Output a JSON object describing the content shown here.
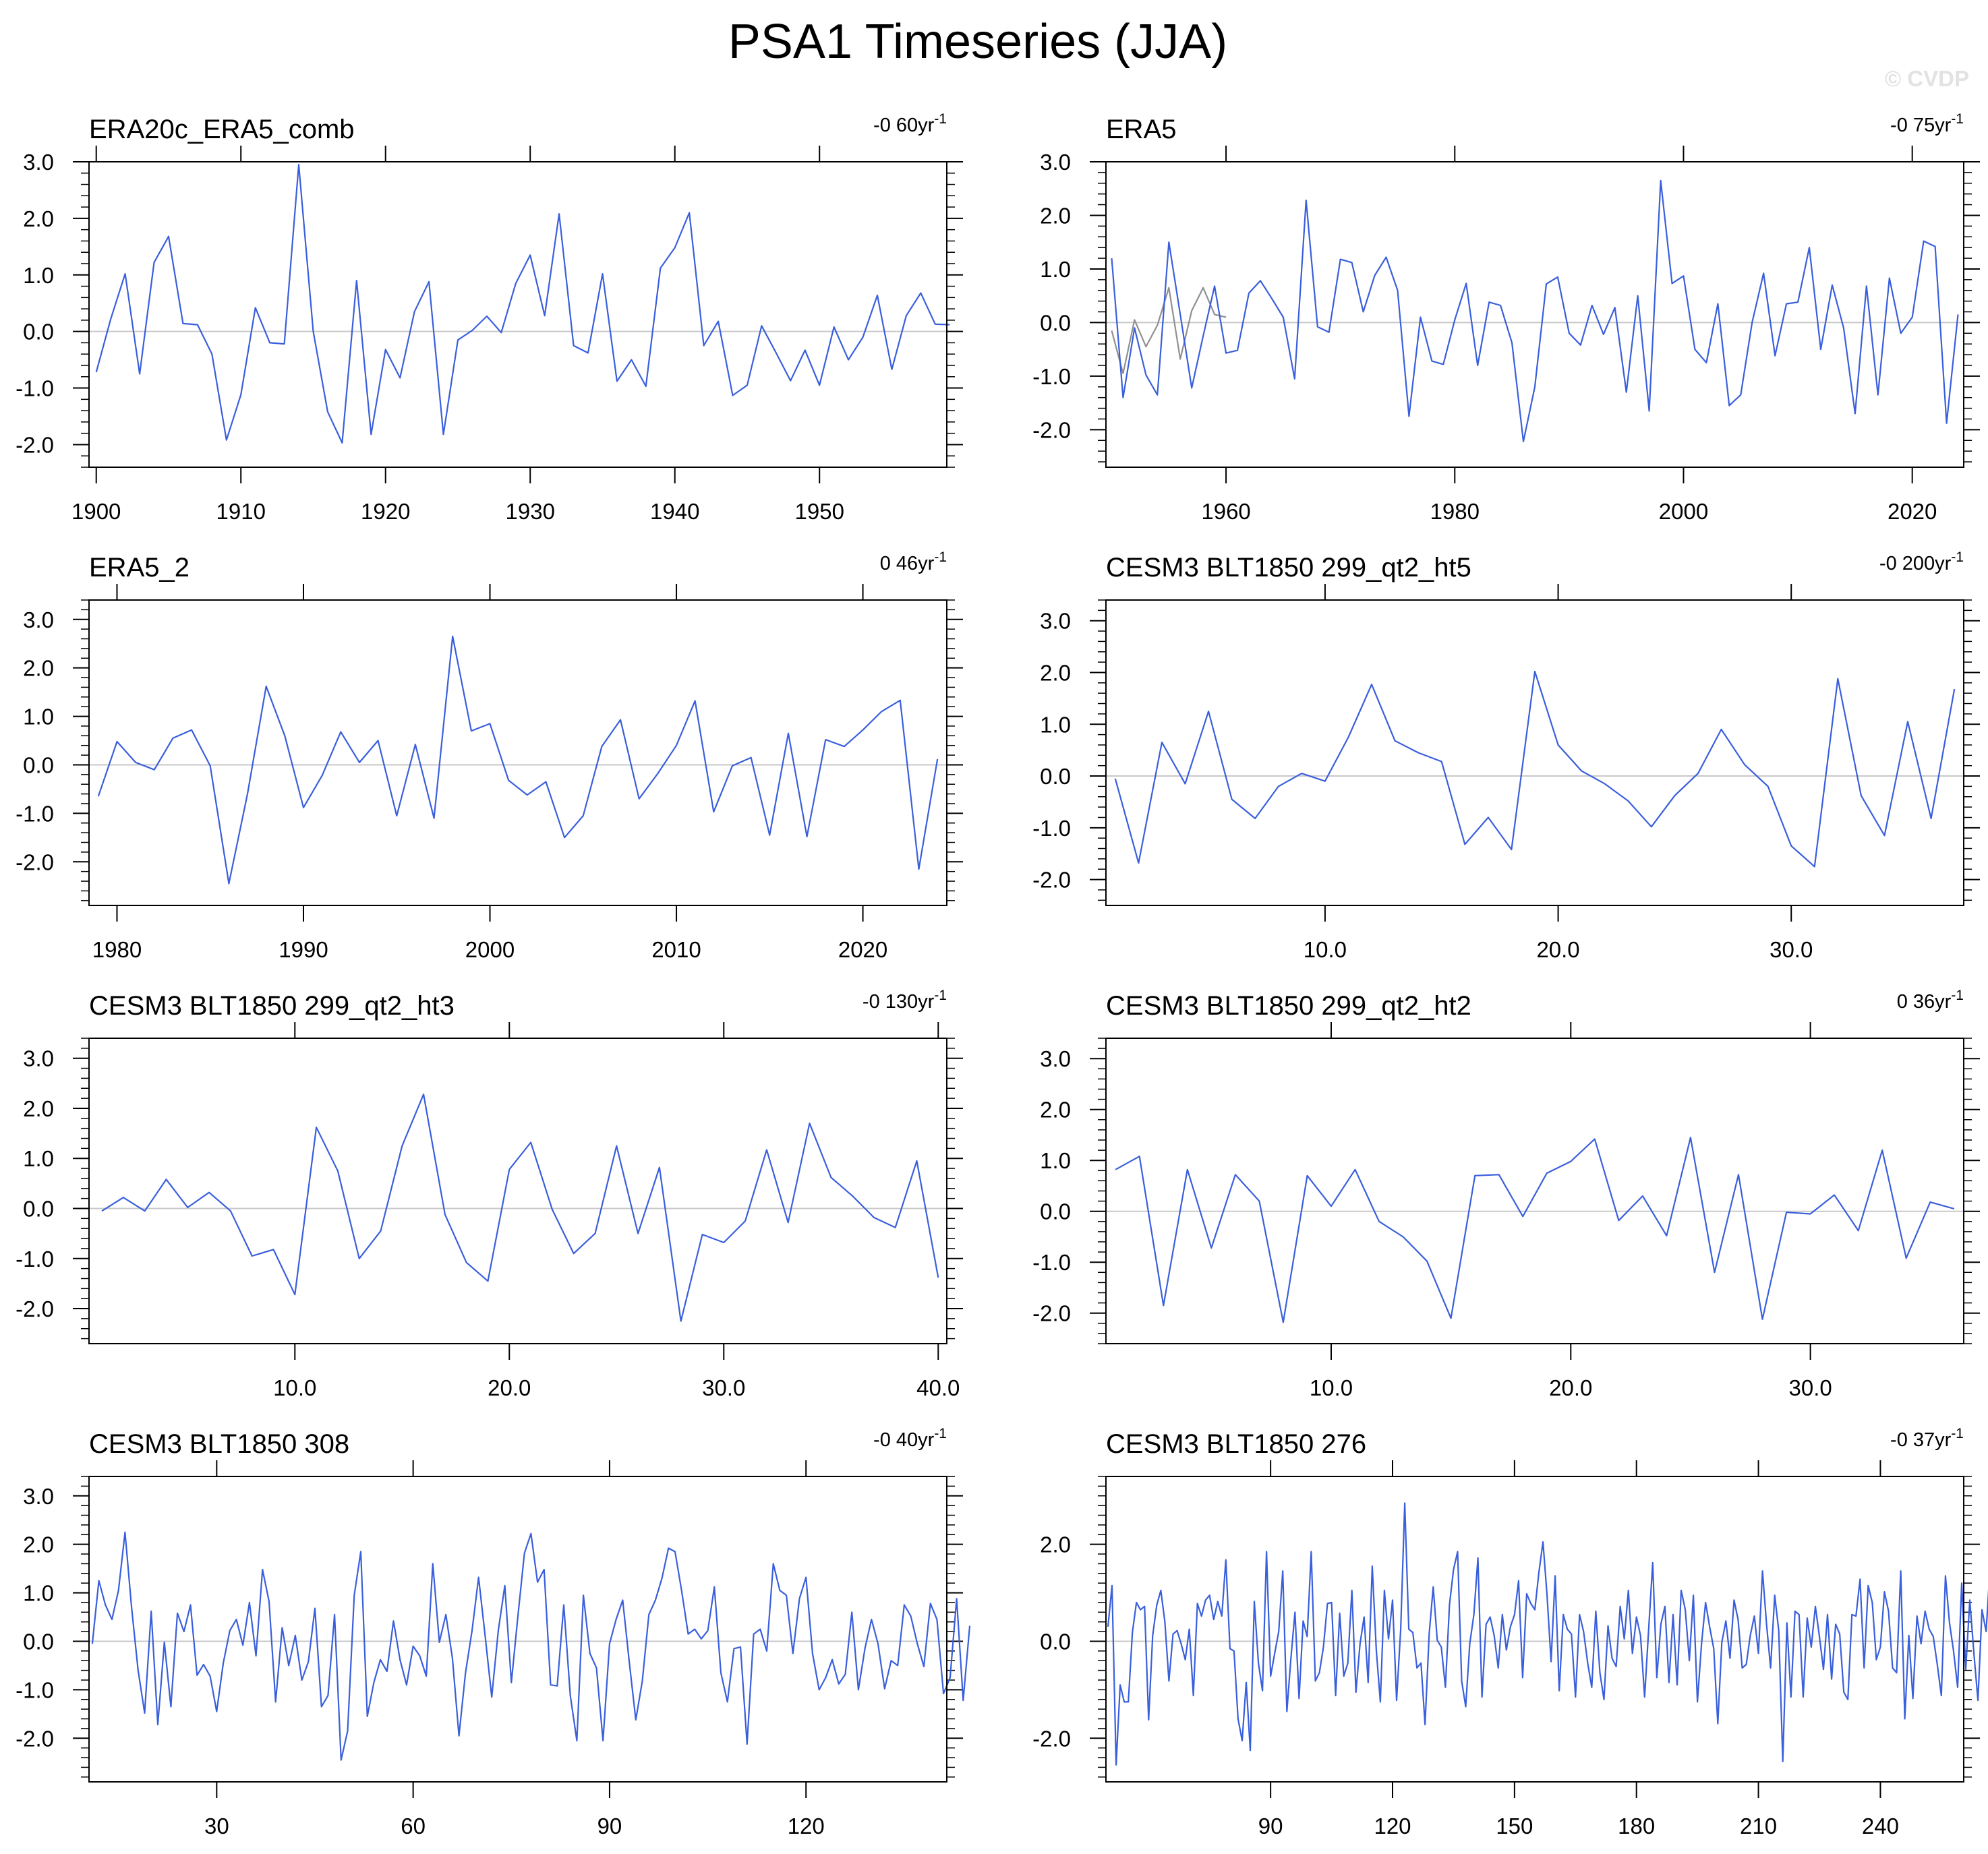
{
  "title": "PSA1 Timeseries (JJA)",
  "watermark": "© CVDP",
  "colors": {
    "line": "#3a5fdc",
    "gray": "#909090",
    "zero": "#c8c8c8",
    "axis": "#000000",
    "watermark": "#e2e2e2"
  },
  "chart_data": [
    {
      "type": "line",
      "name": "ERA20c_ERA5_comb",
      "trend": "-0 60yr",
      "trend_sup": "-1",
      "xlim": [
        1899.5,
        1958.8
      ],
      "ylim": [
        -2.4,
        3.0
      ],
      "xticks": [
        1900,
        1910,
        1920,
        1930,
        1940,
        1950
      ],
      "xtick_labels": [
        "1900",
        "1910",
        "1920",
        "1930",
        "1940",
        "1950"
      ],
      "yticks": [
        -2.0,
        -1.0,
        0.0,
        1.0,
        2.0,
        3.0
      ],
      "ytick_labels": [
        "-2.0",
        "-1.0",
        "0.0",
        "1.0",
        "2.0",
        "3.0"
      ],
      "series": [
        {
          "name": "PSA1",
          "color": "line",
          "x0": 1900,
          "dx": 1,
          "values": [
            -0.72,
            0.22,
            1.02,
            -0.75,
            1.22,
            1.68,
            0.14,
            0.12,
            -0.4,
            -1.92,
            -1.12,
            0.42,
            -0.2,
            -0.22,
            2.95,
            0.0,
            -1.42,
            -1.97,
            0.9,
            -1.82,
            -0.32,
            -0.82,
            0.35,
            0.88,
            -1.82,
            -0.15,
            0.02,
            0.27,
            -0.02,
            0.85,
            1.35,
            0.28,
            2.08,
            -0.25,
            -0.38,
            1.02,
            -0.88,
            -0.5,
            -0.97,
            1.12,
            1.48,
            2.1,
            -0.25,
            0.18,
            -1.13,
            -0.95,
            0.1,
            -0.38,
            -0.87,
            -0.33,
            -0.95,
            0.08,
            -0.5,
            -0.1,
            0.64,
            -0.67,
            0.28,
            0.68,
            0.13,
            0.12
          ]
        }
      ]
    },
    {
      "type": "line",
      "name": "ERA5",
      "trend": "-0 75yr",
      "trend_sup": "-1",
      "xlim": [
        1949.5,
        2024.5
      ],
      "ylim": [
        -2.7,
        3.0
      ],
      "xticks": [
        1960,
        1980,
        2000,
        2020
      ],
      "xtick_labels": [
        "1960",
        "1980",
        "2000",
        "2020"
      ],
      "yticks": [
        -2.0,
        -1.0,
        0.0,
        1.0,
        2.0,
        3.0
      ],
      "ytick_labels": [
        "-2.0",
        "-1.0",
        "0.0",
        "1.0",
        "2.0",
        "3.0"
      ],
      "series": [
        {
          "name": "gray",
          "color": "gray",
          "x0": 1950,
          "dx": 1,
          "values": [
            -0.15,
            -0.95,
            0.05,
            -0.45,
            -0.05,
            0.65,
            -0.68,
            0.22,
            0.65,
            0.15,
            0.1
          ]
        },
        {
          "name": "PSA1",
          "color": "line",
          "x0": 1950,
          "dx": 1,
          "values": [
            1.2,
            -1.4,
            -0.1,
            -0.98,
            -1.35,
            1.5,
            0.15,
            -1.22,
            -0.25,
            0.68,
            -0.57,
            -0.52,
            0.55,
            0.78,
            0.45,
            0.1,
            -1.05,
            2.28,
            -0.08,
            -0.18,
            1.18,
            1.12,
            0.2,
            0.88,
            1.22,
            0.6,
            -1.75,
            0.1,
            -0.72,
            -0.78,
            0.05,
            0.73,
            -0.8,
            0.38,
            0.32,
            -0.38,
            -2.22,
            -1.2,
            0.72,
            0.85,
            -0.2,
            -0.42,
            0.32,
            -0.22,
            0.28,
            -1.3,
            0.5,
            -1.65,
            2.65,
            0.73,
            0.87,
            -0.5,
            -0.75,
            0.35,
            -1.55,
            -1.35,
            0.0,
            0.92,
            -0.62,
            0.35,
            0.38,
            1.4,
            -0.5,
            0.7,
            -0.1,
            -1.7,
            0.68,
            -1.35,
            0.83,
            -0.2,
            0.1,
            1.52,
            1.42,
            -1.88,
            0.15
          ]
        }
      ]
    },
    {
      "type": "line",
      "name": "ERA5_2",
      "trend": "0 46yr",
      "trend_sup": "-1",
      "xlim": [
        1978.5,
        2024.5
      ],
      "ylim": [
        -2.9,
        3.4
      ],
      "xticks": [
        1980,
        1990,
        2000,
        2010,
        2020
      ],
      "xtick_labels": [
        "1980",
        "1990",
        "2000",
        "2010",
        "2020"
      ],
      "yticks": [
        -2.0,
        -1.0,
        0.0,
        1.0,
        2.0,
        3.0
      ],
      "ytick_labels": [
        "-2.0",
        "-1.0",
        "0.0",
        "1.0",
        "2.0",
        "3.0"
      ],
      "series": [
        {
          "name": "PSA1",
          "color": "line",
          "x0": 1979,
          "dx": 1,
          "values": [
            -0.65,
            0.48,
            0.05,
            -0.1,
            0.55,
            0.72,
            -0.02,
            -2.45,
            -0.6,
            1.62,
            0.6,
            -0.88,
            -0.22,
            0.68,
            0.05,
            0.5,
            -1.05,
            0.42,
            -1.1,
            2.65,
            0.7,
            0.85,
            -0.32,
            -0.62,
            -0.35,
            -1.5,
            -1.05,
            0.38,
            0.93,
            -0.7,
            -0.18,
            0.4,
            1.32,
            -0.97,
            -0.02,
            0.15,
            -1.45,
            0.65,
            -1.48,
            0.52,
            0.38,
            0.72,
            1.1,
            1.33,
            -2.15,
            0.12
          ]
        }
      ]
    },
    {
      "type": "line",
      "name": "CESM3 BLT1850 299_qt2_ht5",
      "trend": "-0 200yr",
      "trend_sup": "-1",
      "xlim": [
        0.6,
        37.4
      ],
      "ylim": [
        -2.5,
        3.4
      ],
      "xticks": [
        10,
        20,
        30
      ],
      "xtick_labels": [
        "10.0",
        "20.0",
        "30.0"
      ],
      "yticks": [
        -2.0,
        -1.0,
        0.0,
        1.0,
        2.0,
        3.0
      ],
      "ytick_labels": [
        "-2.0",
        "-1.0",
        "0.0",
        "1.0",
        "2.0",
        "3.0"
      ],
      "series": [
        {
          "name": "PSA1",
          "color": "line",
          "x0": 1,
          "dx": 1,
          "values": [
            -0.05,
            -1.68,
            0.65,
            -0.15,
            1.25,
            -0.45,
            -0.82,
            -0.2,
            0.05,
            -0.1,
            0.75,
            1.77,
            0.68,
            0.45,
            0.28,
            -1.32,
            -0.8,
            -1.42,
            2.02,
            0.6,
            0.1,
            -0.15,
            -0.48,
            -0.98,
            -0.38,
            0.05,
            0.9,
            0.22,
            -0.2,
            -1.35,
            -1.75,
            1.88,
            -0.38,
            -1.15,
            1.05,
            -0.82,
            1.68
          ]
        }
      ]
    },
    {
      "type": "line",
      "name": "CESM3 BLT1850 299_qt2_ht3",
      "trend": "-0 130yr",
      "trend_sup": "-1",
      "xlim": [
        0.4,
        40.4
      ],
      "ylim": [
        -2.7,
        3.4
      ],
      "xticks": [
        10,
        20,
        30,
        40
      ],
      "xtick_labels": [
        "10.0",
        "20.0",
        "30.0",
        "40.0"
      ],
      "yticks": [
        -2.0,
        -1.0,
        0.0,
        1.0,
        2.0,
        3.0
      ],
      "ytick_labels": [
        "-2.0",
        "-1.0",
        "0.0",
        "1.0",
        "2.0",
        "3.0"
      ],
      "series": [
        {
          "name": "PSA1",
          "color": "line",
          "x0": 1,
          "dx": 1,
          "values": [
            -0.05,
            0.22,
            -0.05,
            0.58,
            0.02,
            0.32,
            -0.05,
            -0.95,
            -0.82,
            -1.72,
            1.62,
            0.75,
            -1.0,
            -0.45,
            1.25,
            2.28,
            -0.12,
            -1.08,
            -1.45,
            0.78,
            1.32,
            -0.02,
            -0.9,
            -0.5,
            1.25,
            -0.5,
            0.82,
            -2.25,
            -0.52,
            -0.68,
            -0.25,
            1.17,
            -0.28,
            1.7,
            0.62,
            0.25,
            -0.18,
            -0.38,
            0.95,
            -1.38
          ]
        }
      ]
    },
    {
      "type": "line",
      "name": "CESM3 BLT1850 299_qt2_ht2",
      "trend": "0 36yr",
      "trend_sup": "-1",
      "xlim": [
        0.6,
        36.4
      ],
      "ylim": [
        -2.6,
        3.4
      ],
      "xticks": [
        10,
        20,
        30
      ],
      "xtick_labels": [
        "10.0",
        "20.0",
        "30.0"
      ],
      "yticks": [
        -2.0,
        -1.0,
        0.0,
        1.0,
        2.0,
        3.0
      ],
      "ytick_labels": [
        "-2.0",
        "-1.0",
        "0.0",
        "1.0",
        "2.0",
        "3.0"
      ],
      "series": [
        {
          "name": "PSA1",
          "color": "line",
          "x0": 1,
          "dx": 1,
          "values": [
            0.82,
            1.08,
            -1.85,
            0.82,
            -0.72,
            0.72,
            0.2,
            -2.18,
            0.7,
            0.1,
            0.82,
            -0.2,
            -0.5,
            -0.98,
            -2.1,
            0.7,
            0.72,
            -0.1,
            0.75,
            0.98,
            1.42,
            -0.18,
            0.3,
            -0.48,
            1.45,
            -1.2,
            0.72,
            -2.12,
            -0.02,
            -0.05,
            0.32,
            -0.38,
            1.2,
            -0.92,
            0.18,
            0.05
          ]
        }
      ]
    },
    {
      "type": "line",
      "name": "CESM3 BLT1850 308",
      "trend": "-0 40yr",
      "trend_sup": "-1",
      "xlim": [
        10.5,
        141.5
      ],
      "ylim": [
        -2.9,
        3.4
      ],
      "xticks": [
        30,
        60,
        90,
        120
      ],
      "xtick_labels": [
        "30",
        "60",
        "90",
        "120"
      ],
      "yticks": [
        -2.0,
        -1.0,
        0.0,
        1.0,
        2.0,
        3.0
      ],
      "ytick_labels": [
        "-2.0",
        "-1.0",
        "0.0",
        "1.0",
        "2.0",
        "3.0"
      ],
      "series": [
        {
          "name": "PSA1",
          "color": "line",
          "x0": 11,
          "dx": 1,
          "values": [
            -0.05,
            1.25,
            0.75,
            0.45,
            1.05,
            2.25,
            0.7,
            -0.6,
            -1.48,
            0.62,
            -1.72,
            -0.02,
            -1.35,
            0.58,
            0.2,
            0.75,
            -0.7,
            -0.48,
            -0.72,
            -1.45,
            -0.45,
            0.22,
            0.45,
            -0.08,
            0.8,
            -0.3,
            1.48,
            0.82,
            -1.25,
            0.28,
            -0.5,
            0.12,
            -0.8,
            -0.42,
            0.68,
            -1.35,
            -1.12,
            0.55,
            -2.45,
            -1.85,
            0.95,
            1.85,
            -1.55,
            -0.85,
            -0.38,
            -0.62,
            0.42,
            -0.38,
            -0.9,
            -0.1,
            -0.3,
            -0.72,
            1.6,
            -0.02,
            0.55,
            -0.35,
            -1.95,
            -0.65,
            0.22,
            1.32,
            0.1,
            -1.15,
            0.22,
            1.15,
            -0.85,
            0.52,
            1.82,
            2.22,
            1.22,
            1.48,
            -0.9,
            -0.92,
            0.75,
            -1.12,
            -2.05,
            0.95,
            -0.25,
            -0.55,
            -2.05,
            -0.05,
            0.45,
            0.85,
            -0.42,
            -1.62,
            -0.82,
            0.55,
            0.85,
            1.3,
            1.92,
            1.85,
            1.05,
            0.15,
            0.25,
            0.05,
            0.22,
            1.12,
            -0.65,
            -1.25,
            -0.15,
            -0.12,
            -2.12,
            0.15,
            0.25,
            -0.2,
            1.6,
            1.05,
            0.95,
            -0.25,
            0.88,
            1.32,
            -0.25,
            -1.0,
            -0.75,
            -0.38,
            -0.88,
            -0.68,
            0.6,
            -1.0,
            -0.15,
            0.45,
            -0.05,
            -0.98,
            -0.4,
            -0.5,
            0.75,
            0.52,
            -0.05,
            -0.52,
            0.78,
            0.45,
            -1.08,
            -0.75,
            0.88,
            -1.22,
            0.32
          ]
        }
      ]
    },
    {
      "type": "line",
      "name": "CESM3 BLT1850 276",
      "trend": "-0 37yr",
      "trend_sup": "-1",
      "xlim": [
        49.5,
        260.5
      ],
      "ylim": [
        -2.9,
        3.4
      ],
      "xticks": [
        90,
        120,
        150,
        180,
        210,
        240
      ],
      "xtick_labels": [
        "90",
        "120",
        "150",
        "180",
        "210",
        "240"
      ],
      "yticks": [
        -2.0,
        0.0,
        2.0
      ],
      "ytick_labels": [
        "-2.0",
        "0.0",
        "2.0"
      ],
      "series": [
        {
          "name": "PSA1",
          "color": "line",
          "x0": 50,
          "dx": 1,
          "values": [
            0.3,
            1.15,
            -2.55,
            -0.9,
            -1.25,
            -1.25,
            0.18,
            0.8,
            0.65,
            0.72,
            -1.62,
            0.12,
            0.75,
            1.05,
            0.4,
            -0.82,
            0.15,
            0.22,
            -0.05,
            -0.38,
            0.25,
            -1.12,
            0.78,
            0.52,
            0.85,
            0.95,
            0.45,
            0.82,
            0.52,
            1.68,
            -0.15,
            -0.2,
            -1.6,
            -2.05,
            -0.85,
            -2.25,
            0.82,
            -0.45,
            -1.02,
            1.85,
            -0.72,
            -0.25,
            0.2,
            1.45,
            -1.45,
            -0.35,
            0.6,
            -1.18,
            0.42,
            0.1,
            1.85,
            -0.82,
            -0.65,
            -0.12,
            0.78,
            0.8,
            -1.12,
            0.58,
            -0.72,
            -0.45,
            1.05,
            -1.05,
            -0.05,
            0.5,
            -0.85,
            1.55,
            -0.18,
            -1.25,
            1.05,
            0.05,
            0.85,
            -1.22,
            0.25,
            2.85,
            0.25,
            0.18,
            -0.55,
            -0.45,
            -1.72,
            0.15,
            1.12,
            0.02,
            -0.12,
            -0.95,
            0.75,
            1.48,
            1.85,
            -0.82,
            -1.35,
            -0.05,
            0.55,
            1.72,
            -1.15,
            0.35,
            0.5,
            0.12,
            -0.55,
            0.55,
            -0.18,
            0.3,
            0.55,
            1.25,
            -0.75,
            0.98,
            0.78,
            0.65,
            1.42,
            2.05,
            0.95,
            -0.42,
            1.35,
            -1.02,
            0.55,
            0.25,
            0.15,
            -1.15,
            0.55,
            0.2,
            -0.45,
            -0.95,
            0.62,
            -0.65,
            -1.2,
            0.32,
            -0.35,
            -0.52,
            0.72,
            0.05,
            1.05,
            -0.25,
            0.5,
            0.12,
            -1.15,
            0.25,
            1.62,
            -0.75,
            0.35,
            0.72,
            -0.85,
            0.55,
            -0.9,
            1.05,
            0.65,
            -0.4,
            0.95,
            -1.25,
            -0.05,
            0.8,
            0.3,
            -0.15,
            -1.7,
            -0.02,
            0.42,
            -0.35,
            0.85,
            0.45,
            -0.55,
            -0.48,
            0.12,
            0.52,
            -0.25,
            1.45,
            0.35,
            -0.55,
            0.95,
            0.22,
            -2.48,
            0.38,
            -1.15,
            0.62,
            0.55,
            -1.15,
            0.48,
            -0.12,
            0.72,
            0.1,
            -0.58,
            0.55,
            -0.78,
            0.35,
            0.15,
            -1.05,
            -1.2,
            0.55,
            0.52,
            1.28,
            -0.55,
            1.15,
            0.8,
            -0.38,
            -0.12,
            1.02,
            0.62,
            -0.55,
            -0.65,
            1.45,
            -1.6,
            0.12,
            -1.18,
            0.52,
            -0.05,
            0.62,
            0.25,
            0.1,
            -0.48,
            -1.12,
            1.35,
            0.38,
            -0.2,
            -0.95,
            1.2,
            -0.58,
            0.85,
            -0.25,
            -1.22,
            0.65,
            0.2,
            1.55,
            -1.25,
            -0.28,
            0.15,
            0.85,
            1.45,
            0.1,
            0.75,
            -1.15,
            0.95,
            -0.45,
            -0.25,
            2.75,
            -0.62,
            0.25,
            0.6,
            -1.05,
            -1.35,
            0.72
          ]
        }
      ]
    }
  ]
}
